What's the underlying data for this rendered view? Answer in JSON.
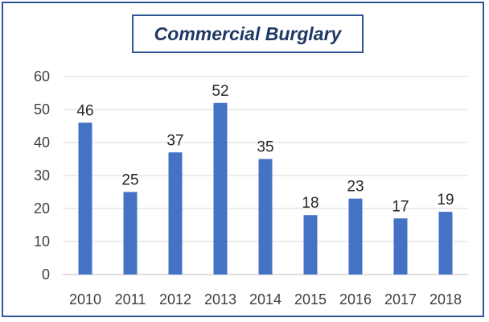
{
  "chart_data": {
    "type": "bar",
    "title": "Commercial Burglary",
    "categories": [
      "2010",
      "2011",
      "2012",
      "2013",
      "2014",
      "2015",
      "2016",
      "2017",
      "2018"
    ],
    "values": [
      46,
      25,
      37,
      52,
      35,
      18,
      23,
      17,
      19
    ],
    "ylim": [
      0,
      60
    ],
    "yticks": [
      0,
      10,
      20,
      30,
      40,
      50,
      60
    ],
    "grid": true,
    "legend": "none",
    "data_labels": true,
    "colors": {
      "bar": "#4472c4",
      "frame": "#2f5597",
      "title": "#1f3864",
      "grid": "#d9d9d9"
    }
  }
}
